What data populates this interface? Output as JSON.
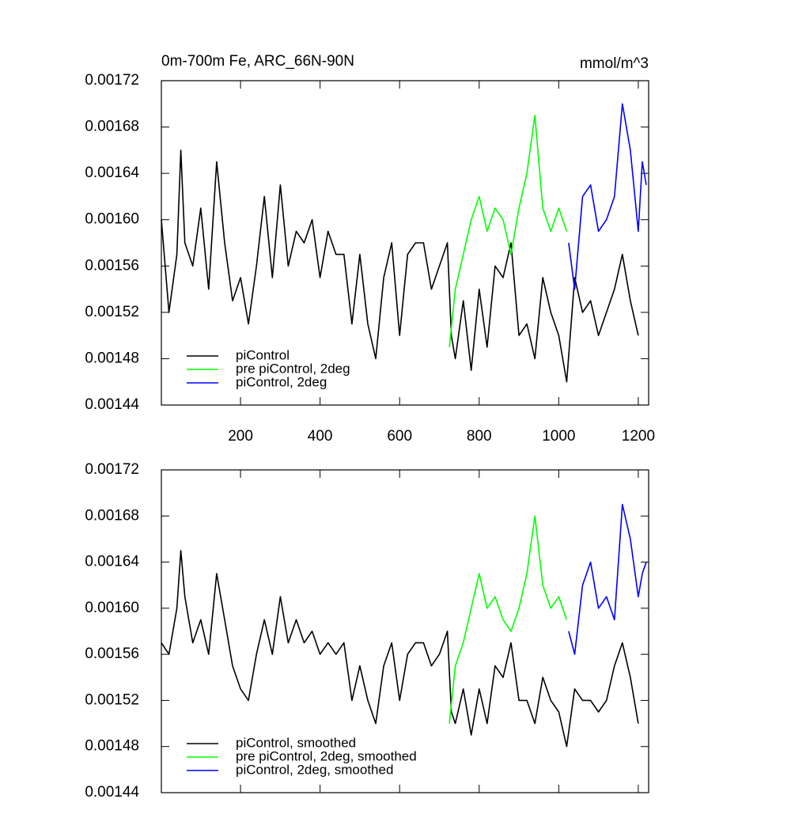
{
  "chart_data": [
    {
      "type": "line",
      "title": "0m-700m Fe, ARC_66N-90N",
      "units": "mmol/m^3",
      "xlim": [
        1,
        1226
      ],
      "xticks": [
        200,
        400,
        600,
        800,
        1000,
        1200
      ],
      "show_xtick_labels": true,
      "ylim": [
        0.00144,
        0.00172
      ],
      "yticks": [
        0.00144,
        0.00148,
        0.00152,
        0.00156,
        {
          "value": 0.0016,
          "label": "0.00160"
        },
        0.00164,
        0.00168,
        0.00172
      ],
      "legend": "lower-left",
      "series": [
        {
          "name": "piControl",
          "color": "#000000",
          "x": [
            1,
            20,
            40,
            50,
            60,
            80,
            100,
            120,
            140,
            160,
            180,
            200,
            220,
            240,
            260,
            280,
            300,
            320,
            340,
            360,
            380,
            400,
            420,
            440,
            460,
            480,
            500,
            520,
            540,
            560,
            580,
            600,
            620,
            640,
            660,
            680,
            700,
            720,
            730,
            740,
            760,
            780,
            800,
            820,
            840,
            860,
            880,
            900,
            920,
            940,
            960,
            980,
            1000,
            1020,
            1040,
            1060,
            1080,
            1100,
            1120,
            1140,
            1160,
            1180,
            1200
          ],
          "values": [
            0.0016,
            0.00152,
            0.00157,
            0.00166,
            0.00158,
            0.00156,
            0.00161,
            0.00154,
            0.00165,
            0.00158,
            0.00153,
            0.00155,
            0.00151,
            0.00156,
            0.00162,
            0.00155,
            0.00163,
            0.00156,
            0.00159,
            0.00158,
            0.0016,
            0.00155,
            0.00159,
            0.00157,
            0.00157,
            0.00151,
            0.00157,
            0.00151,
            0.00148,
            0.00155,
            0.00158,
            0.0015,
            0.00157,
            0.00158,
            0.00158,
            0.00154,
            0.00156,
            0.00158,
            0.0015,
            0.00148,
            0.00153,
            0.00147,
            0.00154,
            0.00149,
            0.00156,
            0.00155,
            0.00158,
            0.0015,
            0.00151,
            0.00148,
            0.00155,
            0.00152,
            0.0015,
            0.00146,
            0.00155,
            0.00152,
            0.00153,
            0.0015,
            0.00152,
            0.00154,
            0.00157,
            0.00153,
            0.0015
          ]
        },
        {
          "name": "pre piControl, 2deg",
          "color": "#00ff00",
          "x": [
            725,
            740,
            760,
            780,
            800,
            820,
            840,
            860,
            880,
            900,
            920,
            940,
            960,
            980,
            1000,
            1020
          ],
          "values": [
            0.00149,
            0.00154,
            0.00157,
            0.0016,
            0.00162,
            0.00159,
            0.00161,
            0.0016,
            0.00157,
            0.00161,
            0.00164,
            0.00169,
            0.00161,
            0.00159,
            0.00161,
            0.00159
          ]
        },
        {
          "name": "piControl, 2deg",
          "color": "#0000ff",
          "x": [
            1025,
            1040,
            1060,
            1080,
            1100,
            1120,
            1140,
            1160,
            1180,
            1200,
            1210,
            1220
          ],
          "values": [
            0.00158,
            0.00154,
            0.00162,
            0.00163,
            0.00159,
            0.0016,
            0.00162,
            0.0017,
            0.00166,
            0.00159,
            0.00165,
            0.00163
          ]
        }
      ]
    },
    {
      "type": "line",
      "xlim": [
        1,
        1226
      ],
      "xticks": [
        200,
        400,
        600,
        800,
        1000,
        1200
      ],
      "show_xtick_labels": false,
      "ylim": [
        0.00144,
        0.00172
      ],
      "yticks": [
        0.00144,
        0.00148,
        0.00152,
        0.00156,
        {
          "value": 0.0016,
          "label": "0.00160"
        },
        0.00164,
        0.00168,
        0.00172
      ],
      "legend": "lower-left",
      "series": [
        {
          "name": "piControl, smoothed",
          "color": "#000000",
          "x": [
            1,
            20,
            40,
            50,
            60,
            80,
            100,
            120,
            140,
            160,
            180,
            200,
            220,
            240,
            260,
            280,
            300,
            320,
            340,
            360,
            380,
            400,
            420,
            440,
            460,
            480,
            500,
            520,
            540,
            560,
            580,
            600,
            620,
            640,
            660,
            680,
            700,
            720,
            730,
            740,
            760,
            780,
            800,
            820,
            840,
            860,
            880,
            900,
            920,
            940,
            960,
            980,
            1000,
            1020,
            1040,
            1060,
            1080,
            1100,
            1120,
            1140,
            1160,
            1180,
            1200
          ],
          "values": [
            0.00157,
            0.00156,
            0.0016,
            0.00165,
            0.00161,
            0.00157,
            0.00159,
            0.00156,
            0.00163,
            0.00159,
            0.00155,
            0.00153,
            0.00152,
            0.00156,
            0.00159,
            0.00156,
            0.00161,
            0.00157,
            0.00159,
            0.00157,
            0.00158,
            0.00156,
            0.00157,
            0.00156,
            0.00157,
            0.00152,
            0.00155,
            0.00152,
            0.0015,
            0.00155,
            0.00157,
            0.00152,
            0.00156,
            0.00157,
            0.00157,
            0.00155,
            0.00156,
            0.00158,
            0.00151,
            0.0015,
            0.00153,
            0.00149,
            0.00153,
            0.0015,
            0.00155,
            0.00154,
            0.00157,
            0.00152,
            0.00152,
            0.0015,
            0.00154,
            0.00152,
            0.00151,
            0.00148,
            0.00153,
            0.00152,
            0.00152,
            0.00151,
            0.00152,
            0.00155,
            0.00157,
            0.00154,
            0.0015
          ]
        },
        {
          "name": "pre piControl, 2deg, smoothed",
          "color": "#00ff00",
          "x": [
            725,
            740,
            760,
            780,
            800,
            820,
            840,
            860,
            880,
            900,
            920,
            940,
            960,
            980,
            1000,
            1020
          ],
          "values": [
            0.0015,
            0.00155,
            0.00157,
            0.0016,
            0.00163,
            0.0016,
            0.00161,
            0.00159,
            0.00158,
            0.0016,
            0.00163,
            0.00168,
            0.00162,
            0.0016,
            0.00161,
            0.00159
          ]
        },
        {
          "name": "piControl, 2deg, smoothed",
          "color": "#0000ff",
          "x": [
            1025,
            1040,
            1060,
            1080,
            1100,
            1120,
            1140,
            1160,
            1180,
            1200,
            1210,
            1220
          ],
          "values": [
            0.00158,
            0.00156,
            0.00162,
            0.00164,
            0.0016,
            0.00161,
            0.00159,
            0.00169,
            0.00166,
            0.00161,
            0.00163,
            0.00164
          ]
        }
      ]
    }
  ]
}
